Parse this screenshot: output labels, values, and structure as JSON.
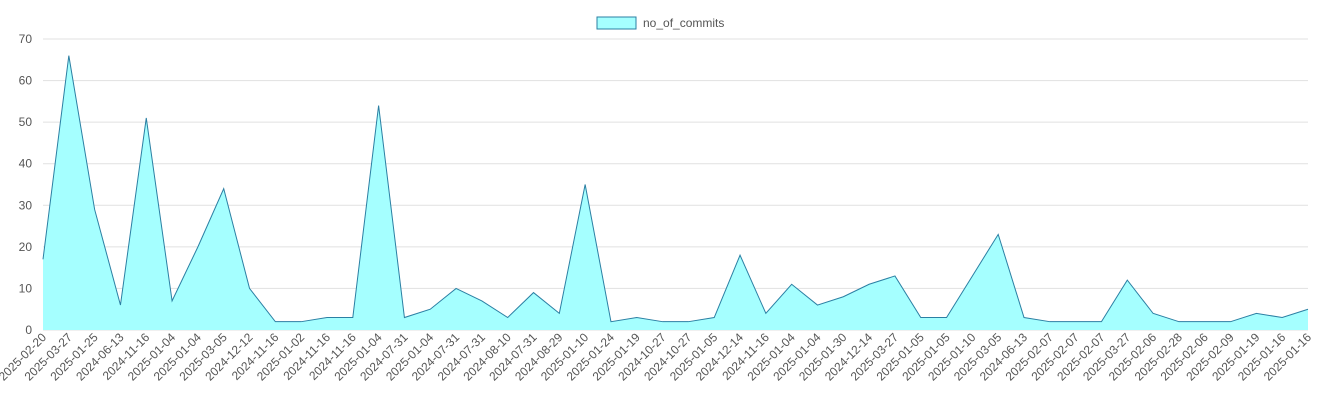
{
  "chart_data": {
    "type": "area",
    "legend": {
      "position": "top-center"
    },
    "grid": true,
    "ylim": [
      0,
      70
    ],
    "yticks": [
      0,
      10,
      20,
      30,
      40,
      50,
      60,
      70
    ],
    "colors": {
      "fill": "#a5ffff",
      "line": "#2b7fa3",
      "grid": "#e1e1e1"
    },
    "categories": [
      "2025-02-20",
      "2025-03-27",
      "2025-01-25",
      "2024-06-13",
      "2024-11-16",
      "2025-01-04",
      "2025-01-04",
      "2025-03-05",
      "2024-12-12",
      "2024-11-16",
      "2025-01-02",
      "2024-11-16",
      "2024-11-16",
      "2025-01-04",
      "2024-07-31",
      "2025-01-04",
      "2024-07-31",
      "2024-07-31",
      "2024-08-10",
      "2024-07-31",
      "2024-08-29",
      "2025-01-10",
      "2025-01-24",
      "2025-01-19",
      "2024-10-27",
      "2024-10-27",
      "2025-01-05",
      "2024-12-14",
      "2024-11-16",
      "2025-01-04",
      "2025-01-04",
      "2025-01-30",
      "2024-12-14",
      "2025-03-27",
      "2025-01-05",
      "2025-01-05",
      "2025-01-10",
      "2025-03-05",
      "2024-06-13",
      "2025-02-07",
      "2025-02-07",
      "2025-02-07",
      "2025-03-27",
      "2025-02-06",
      "2025-02-28",
      "2025-02-06",
      "2025-02-09",
      "2025-01-19",
      "2025-01-16",
      "2025-01-16"
    ],
    "series": [
      {
        "name": "no_of_commits",
        "values": [
          17,
          66,
          29,
          6,
          51,
          7,
          20,
          34,
          10,
          2,
          2,
          3,
          3,
          54,
          3,
          5,
          10,
          7,
          3,
          9,
          4,
          35,
          2,
          3,
          2,
          2,
          3,
          18,
          4,
          11,
          6,
          8,
          11,
          13,
          3,
          3,
          13,
          23,
          3,
          2,
          2,
          2,
          12,
          4,
          2,
          2,
          2,
          4,
          3,
          5
        ]
      }
    ]
  }
}
